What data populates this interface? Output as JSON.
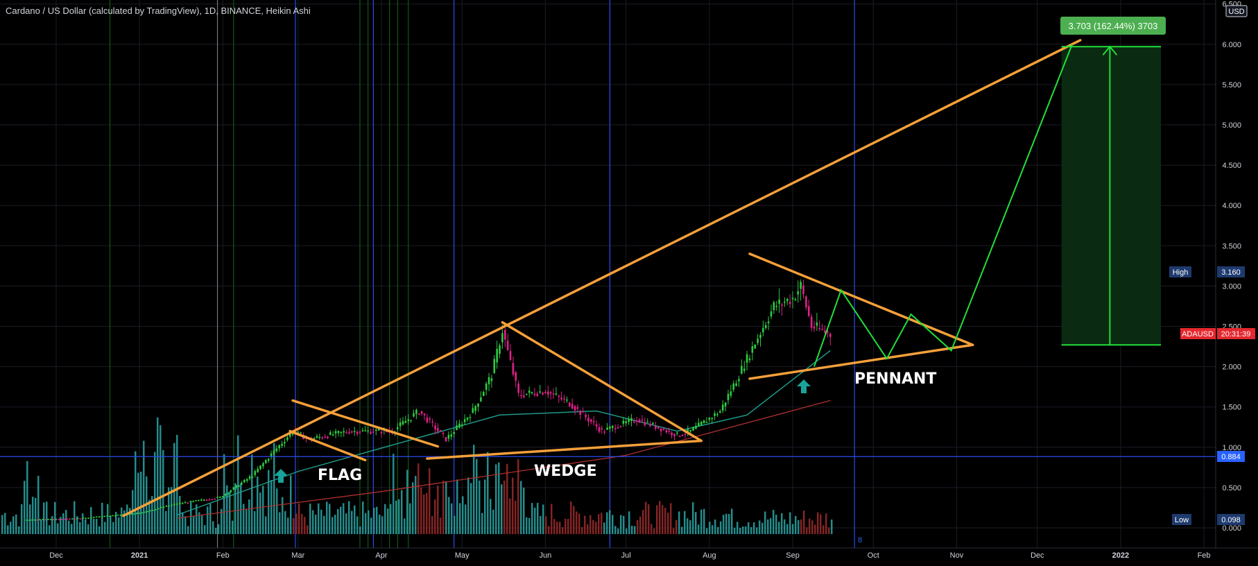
{
  "header": {
    "title": "Cardano / US Dollar (calculated by TradingView), 1D, BINANCE, Heikin Ashi"
  },
  "currency_badge": "USD",
  "price_badges": {
    "high_label": "High",
    "high_value": "3.160",
    "symbol_label": "ADAUSD",
    "symbol_value": "20:31:39",
    "line_value": "0.884",
    "low_label": "Low",
    "low_value": "0.098"
  },
  "target_badge": "3.703 (162.44%) 3703",
  "patterns": {
    "flag": "FLAG",
    "wedge": "WEDGE",
    "pennant": "PENNANT"
  },
  "marker_number": "8",
  "colors": {
    "background": "#000000",
    "trendline": "#f5a03a",
    "projection": "#22e03a",
    "up_candle": "#2ecc40",
    "down_candle": "#e0208a",
    "ma_fast": "#1e9a8a",
    "ma_slow": "#b03030",
    "vol_up": "#2aa5a5",
    "vol_down": "#9b2a2a",
    "blue_line": "#2a4cf0",
    "target_zone": "#0a2a12"
  },
  "chart_data": {
    "type": "candlestick",
    "title": "Cardano / US Dollar (calculated by TradingView), 1D, BINANCE, Heikin Ashi",
    "x_ticks": [
      "Dec",
      "2021",
      "Feb",
      "Mar",
      "Apr",
      "May",
      "Jun",
      "Jul",
      "Aug",
      "Sep",
      "Oct",
      "Nov",
      "Dec",
      "2022",
      "Feb"
    ],
    "y_ticks": [
      "6.500",
      "6.000",
      "5.500",
      "5.000",
      "4.500",
      "4.000",
      "3.500",
      "3.000",
      "2.500",
      "2.000",
      "1.500",
      "1.000",
      "0.500",
      "0.000"
    ],
    "ylim": [
      0,
      6.5
    ],
    "price_path": [
      [
        "2020-11-20",
        0.1
      ],
      [
        "2020-12-10",
        0.12
      ],
      [
        "2020-12-31",
        0.18
      ],
      [
        "2021-01-15",
        0.3
      ],
      [
        "2021-01-31",
        0.38
      ],
      [
        "2021-02-12",
        0.65
      ],
      [
        "2021-02-20",
        0.95
      ],
      [
        "2021-02-27",
        1.2
      ],
      [
        "2021-03-05",
        1.1
      ],
      [
        "2021-03-20",
        1.2
      ],
      [
        "2021-04-05",
        1.2
      ],
      [
        "2021-04-15",
        1.45
      ],
      [
        "2021-04-25",
        1.1
      ],
      [
        "2021-05-05",
        1.45
      ],
      [
        "2021-05-12",
        1.9
      ],
      [
        "2021-05-16",
        2.45
      ],
      [
        "2021-05-22",
        1.65
      ],
      [
        "2021-06-01",
        1.7
      ],
      [
        "2021-06-10",
        1.55
      ],
      [
        "2021-06-22",
        1.2
      ],
      [
        "2021-07-05",
        1.35
      ],
      [
        "2021-07-20",
        1.15
      ],
      [
        "2021-07-25",
        1.2
      ],
      [
        "2021-08-05",
        1.45
      ],
      [
        "2021-08-12",
        1.9
      ],
      [
        "2021-08-18",
        2.3
      ],
      [
        "2021-08-25",
        2.75
      ],
      [
        "2021-09-01",
        2.85
      ],
      [
        "2021-09-04",
        3.0
      ],
      [
        "2021-09-08",
        2.5
      ],
      [
        "2021-09-12",
        2.45
      ],
      [
        "2021-09-15",
        2.4
      ]
    ],
    "ma_fast": [
      [
        "2021-01-15",
        0.16
      ],
      [
        "2021-03-01",
        0.7
      ],
      [
        "2021-05-15",
        1.4
      ],
      [
        "2021-06-20",
        1.45
      ],
      [
        "2021-07-20",
        1.2
      ],
      [
        "2021-08-15",
        1.4
      ],
      [
        "2021-09-15",
        2.2
      ]
    ],
    "ma_slow": [
      [
        "2021-01-15",
        0.12
      ],
      [
        "2021-04-01",
        0.45
      ],
      [
        "2021-07-01",
        0.9
      ],
      [
        "2021-09-15",
        1.58
      ]
    ],
    "horizontal_line": 0.884,
    "high": 3.16,
    "low": 0.098,
    "target": {
      "from": 2.27,
      "to": 5.97,
      "label": "3.703 (162.44%) 3703"
    },
    "trendlines": [
      {
        "name": "rising-support",
        "from": [
          "2020-12-26",
          0.15
        ],
        "to": [
          "2021-12-17",
          6.05
        ]
      },
      {
        "name": "flag-top",
        "from": [
          "2021-02-27",
          1.58
        ],
        "to": [
          "2021-04-22",
          1.01
        ]
      },
      {
        "name": "flag-bottom",
        "from": [
          "2021-02-26",
          1.2
        ],
        "to": [
          "2021-03-26",
          0.84
        ]
      },
      {
        "name": "wedge-top",
        "from": [
          "2021-05-16",
          2.55
        ],
        "to": [
          "2021-07-29",
          1.08
        ]
      },
      {
        "name": "wedge-bottom",
        "from": [
          "2021-04-18",
          0.86
        ],
        "to": [
          "2021-07-29",
          1.08
        ]
      },
      {
        "name": "pennant-top",
        "from": [
          "2021-08-16",
          3.4
        ],
        "to": [
          "2021-11-07",
          2.27
        ]
      },
      {
        "name": "pennant-bottom",
        "from": [
          "2021-08-16",
          1.85
        ],
        "to": [
          "2021-11-07",
          2.27
        ]
      }
    ],
    "projection": [
      [
        "2021-09-09",
        2.0
      ],
      [
        "2021-09-19",
        2.95
      ],
      [
        "2021-10-06",
        2.1
      ],
      [
        "2021-10-15",
        2.65
      ],
      [
        "2021-10-30",
        2.2
      ],
      [
        "2021-12-14",
        6.0
      ]
    ]
  }
}
